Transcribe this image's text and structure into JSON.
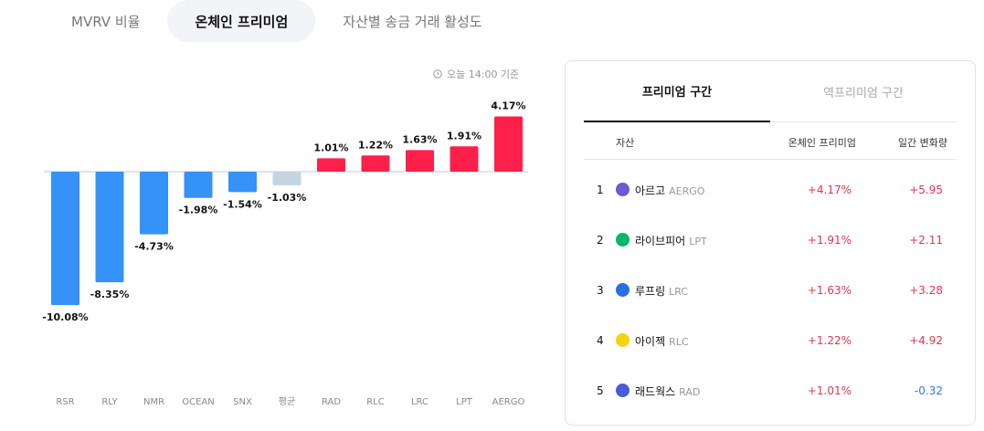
{
  "tabs": [
    {
      "label": "MVRV 비율",
      "active": false
    },
    {
      "label": "온체인 프리미엄",
      "active": true
    },
    {
      "label": "자산별 송금 거래 활성도",
      "active": false
    }
  ],
  "timestamp": "오늘 14:00 기준",
  "chart_data": {
    "type": "bar",
    "categories": [
      "RSR",
      "RLY",
      "NMR",
      "OCEAN",
      "SNX",
      "평균",
      "RAD",
      "RLC",
      "LRC",
      "LPT",
      "AERGO"
    ],
    "values": [
      -10.08,
      -8.35,
      -4.73,
      -1.98,
      -1.54,
      -1.03,
      1.01,
      1.22,
      1.63,
      1.91,
      4.17
    ],
    "value_labels": [
      "-10.08%",
      "-8.35%",
      "-4.73%",
      "-1.98%",
      "-1.54%",
      "-1.03%",
      "1.01%",
      "1.22%",
      "1.63%",
      "1.91%",
      "4.17%"
    ],
    "colors": {
      "negative": "#3592f7",
      "positive": "#ff1f4b",
      "average": "#c4d4e3"
    }
  },
  "panel": {
    "tabs": [
      {
        "label": "프리미엄 구간",
        "active": true
      },
      {
        "label": "역프리미엄 구간",
        "active": false
      }
    ],
    "headers": {
      "asset": "자산",
      "premium": "온체인 프리미엄",
      "change": "일간 변화량"
    },
    "rows": [
      {
        "rank": "1",
        "name": "아르고",
        "symbol": "AERGO",
        "premium": "+4.17%",
        "change": "+5.95",
        "direction": "up",
        "icon": "aergo-icon",
        "icon_color": "#6b5bd6"
      },
      {
        "rank": "2",
        "name": "라이브피어",
        "symbol": "LPT",
        "premium": "+1.91%",
        "change": "+2.11",
        "direction": "up",
        "icon": "livepeer-icon",
        "icon_color": "#00b86b"
      },
      {
        "rank": "3",
        "name": "루프링",
        "symbol": "LRC",
        "premium": "+1.63%",
        "change": "+3.28",
        "direction": "up",
        "icon": "loopring-icon",
        "icon_color": "#2b6fe6"
      },
      {
        "rank": "4",
        "name": "아이젝",
        "symbol": "RLC",
        "premium": "+1.22%",
        "change": "+4.92",
        "direction": "up",
        "icon": "iexec-icon",
        "icon_color": "#f5d20b"
      },
      {
        "rank": "5",
        "name": "래드웍스",
        "symbol": "RAD",
        "premium": "+1.01%",
        "change": "-0.32",
        "direction": "down",
        "icon": "radworks-icon",
        "icon_color": "#4a5bd8"
      }
    ]
  }
}
